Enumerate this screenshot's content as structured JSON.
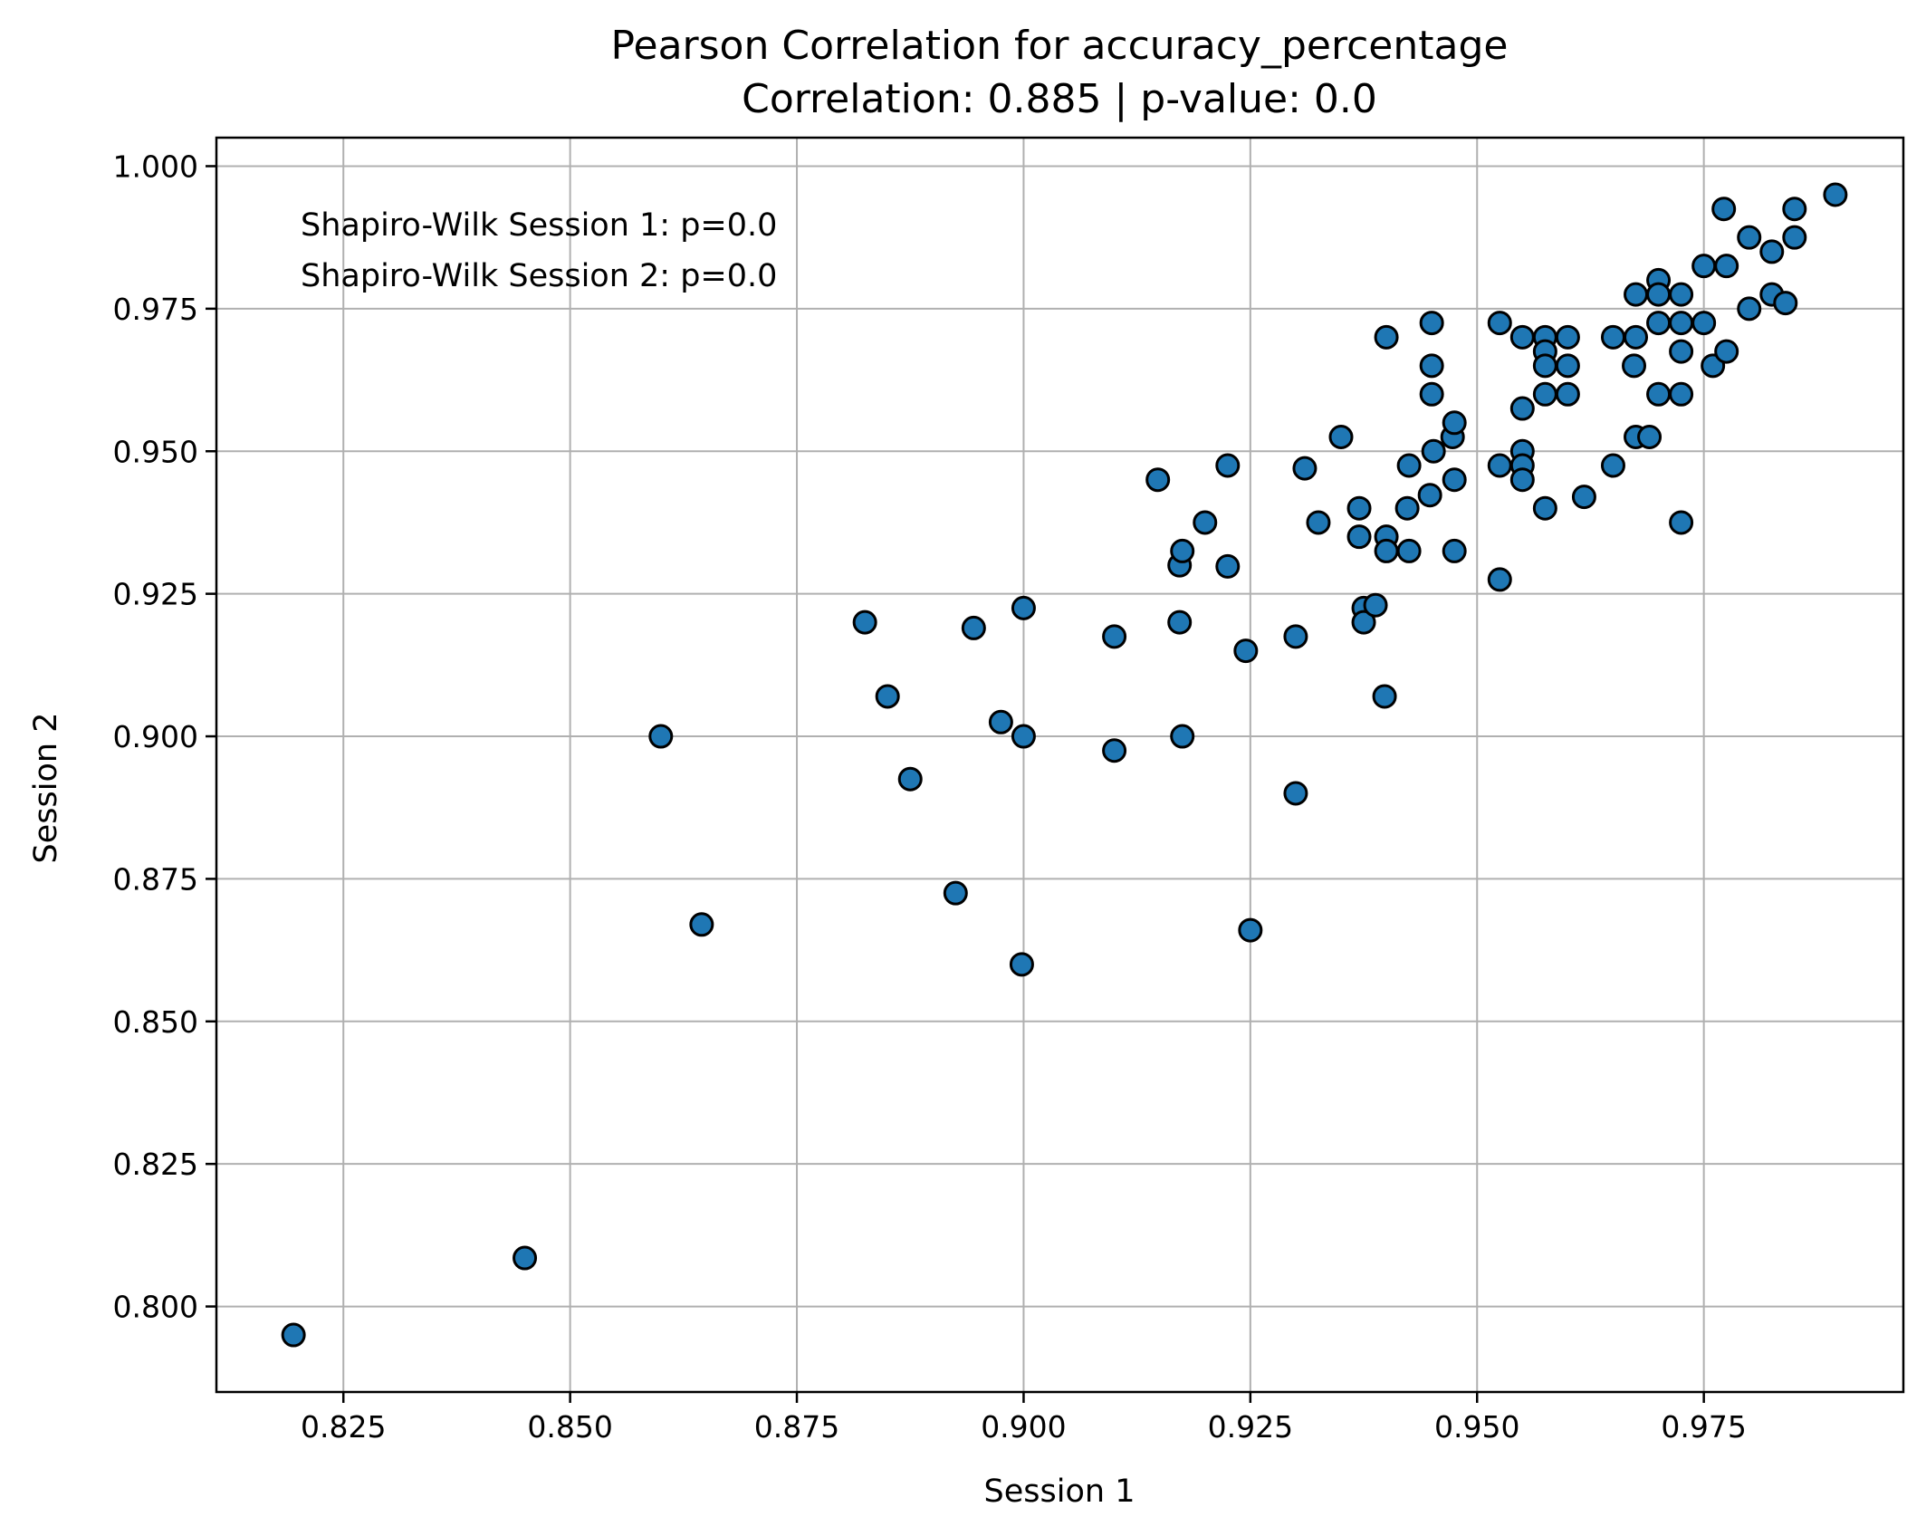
{
  "chart_data": {
    "type": "scatter",
    "title_line1": "Pearson Correlation for accuracy_percentage",
    "title_line2": "Correlation: 0.885 | p-value: 0.0",
    "xlabel": "Session 1",
    "ylabel": "Session 2",
    "xlim": [
      0.811,
      0.997
    ],
    "ylim": [
      0.785,
      1.005
    ],
    "x_ticks": [
      0.825,
      0.85,
      0.875,
      0.9,
      0.925,
      0.95,
      0.975
    ],
    "x_tick_labels": [
      "0.825",
      "0.850",
      "0.875",
      "0.900",
      "0.925",
      "0.950",
      "0.975"
    ],
    "y_ticks": [
      0.8,
      0.825,
      0.85,
      0.875,
      0.9,
      0.925,
      0.95,
      0.975,
      1.0
    ],
    "y_tick_labels": [
      "0.800",
      "0.825",
      "0.850",
      "0.875",
      "0.900",
      "0.925",
      "0.950",
      "0.975",
      "1.000"
    ],
    "grid": true,
    "annotations": [
      "Shapiro-Wilk Session 1: p=0.0",
      "Shapiro-Wilk Session 2: p=0.0"
    ],
    "marker_color": "#1f77b4",
    "marker_edge_color": "#000000",
    "points": [
      [
        0.8195,
        0.795
      ],
      [
        0.845,
        0.8085
      ],
      [
        0.86,
        0.9
      ],
      [
        0.8645,
        0.867
      ],
      [
        0.8825,
        0.92
      ],
      [
        0.885,
        0.907
      ],
      [
        0.8875,
        0.8925
      ],
      [
        0.8925,
        0.8725
      ],
      [
        0.8945,
        0.919
      ],
      [
        0.8975,
        0.9025
      ],
      [
        0.9,
        0.9225
      ],
      [
        0.9,
        0.9
      ],
      [
        0.8998,
        0.86
      ],
      [
        0.91,
        0.9175
      ],
      [
        0.91,
        0.8975
      ],
      [
        0.9148,
        0.945
      ],
      [
        0.9172,
        0.93
      ],
      [
        0.9175,
        0.9325
      ],
      [
        0.9172,
        0.92
      ],
      [
        0.9175,
        0.9
      ],
      [
        0.92,
        0.9375
      ],
      [
        0.9225,
        0.9475
      ],
      [
        0.9225,
        0.9298
      ],
      [
        0.9245,
        0.915
      ],
      [
        0.925,
        0.866
      ],
      [
        0.93,
        0.9175
      ],
      [
        0.93,
        0.89
      ],
      [
        0.931,
        0.947
      ],
      [
        0.9325,
        0.9375
      ],
      [
        0.935,
        0.9525
      ],
      [
        0.937,
        0.94
      ],
      [
        0.937,
        0.935
      ],
      [
        0.9375,
        0.9225
      ],
      [
        0.9375,
        0.92
      ],
      [
        0.9388,
        0.923
      ],
      [
        0.94,
        0.97
      ],
      [
        0.94,
        0.935
      ],
      [
        0.94,
        0.9325
      ],
      [
        0.9398,
        0.907
      ],
      [
        0.9425,
        0.9475
      ],
      [
        0.9423,
        0.94
      ],
      [
        0.9425,
        0.9325
      ],
      [
        0.945,
        0.9725
      ],
      [
        0.945,
        0.965
      ],
      [
        0.945,
        0.96
      ],
      [
        0.9452,
        0.95
      ],
      [
        0.9448,
        0.9423
      ],
      [
        0.9473,
        0.9525
      ],
      [
        0.9475,
        0.955
      ],
      [
        0.9475,
        0.945
      ],
      [
        0.9475,
        0.9325
      ],
      [
        0.9525,
        0.9725
      ],
      [
        0.9525,
        0.9475
      ],
      [
        0.9525,
        0.9275
      ],
      [
        0.955,
        0.97
      ],
      [
        0.955,
        0.9575
      ],
      [
        0.955,
        0.95
      ],
      [
        0.955,
        0.9475
      ],
      [
        0.955,
        0.945
      ],
      [
        0.9575,
        0.97
      ],
      [
        0.9575,
        0.9675
      ],
      [
        0.9575,
        0.965
      ],
      [
        0.9575,
        0.96
      ],
      [
        0.9575,
        0.94
      ],
      [
        0.96,
        0.97
      ],
      [
        0.96,
        0.965
      ],
      [
        0.96,
        0.96
      ],
      [
        0.9618,
        0.942
      ],
      [
        0.965,
        0.97
      ],
      [
        0.965,
        0.9475
      ],
      [
        0.9675,
        0.9775
      ],
      [
        0.9675,
        0.97
      ],
      [
        0.9673,
        0.965
      ],
      [
        0.9675,
        0.9525
      ],
      [
        0.969,
        0.9525
      ],
      [
        0.97,
        0.98
      ],
      [
        0.97,
        0.9775
      ],
      [
        0.97,
        0.9725
      ],
      [
        0.97,
        0.96
      ],
      [
        0.9725,
        0.9775
      ],
      [
        0.9725,
        0.9725
      ],
      [
        0.9725,
        0.9675
      ],
      [
        0.9725,
        0.96
      ],
      [
        0.9725,
        0.9375
      ],
      [
        0.975,
        0.9825
      ],
      [
        0.975,
        0.9725
      ],
      [
        0.976,
        0.965
      ],
      [
        0.9772,
        0.9925
      ],
      [
        0.9775,
        0.9825
      ],
      [
        0.9775,
        0.9675
      ],
      [
        0.98,
        0.9875
      ],
      [
        0.98,
        0.975
      ],
      [
        0.9825,
        0.985
      ],
      [
        0.9825,
        0.9775
      ],
      [
        0.984,
        0.976
      ],
      [
        0.985,
        0.9925
      ],
      [
        0.985,
        0.9875
      ],
      [
        0.9895,
        0.995
      ]
    ]
  }
}
